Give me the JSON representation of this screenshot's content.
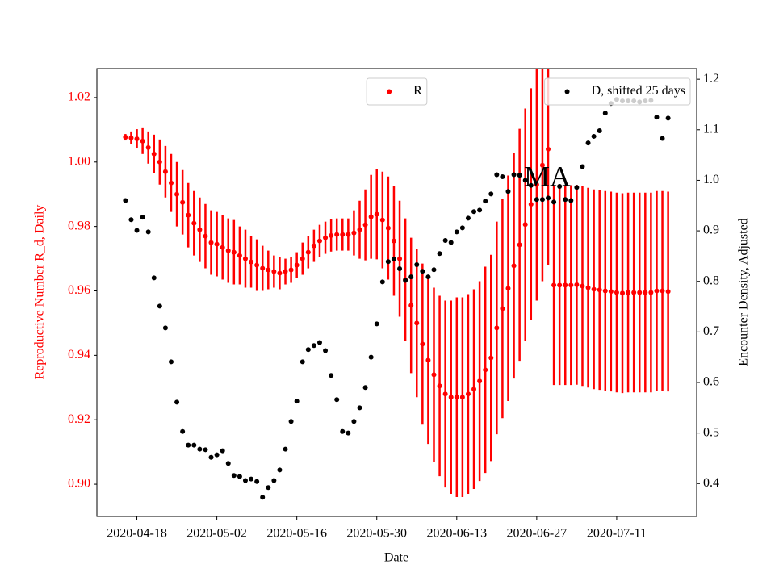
{
  "chart_data": {
    "type": "errorbar_dual",
    "xlabel": "Date",
    "ylabel": "Reproductive Number R_d, Daily",
    "y2label": "Encounter Density, Adjusted",
    "annotations": [
      {
        "text": "MA"
      }
    ],
    "x": [
      "2020-04-16",
      "2020-04-17",
      "2020-04-18",
      "2020-04-19",
      "2020-04-20",
      "2020-04-21",
      "2020-04-22",
      "2020-04-23",
      "2020-04-24",
      "2020-04-25",
      "2020-04-26",
      "2020-04-27",
      "2020-04-28",
      "2020-04-29",
      "2020-04-30",
      "2020-05-01",
      "2020-05-02",
      "2020-05-03",
      "2020-05-04",
      "2020-05-05",
      "2020-05-06",
      "2020-05-07",
      "2020-05-08",
      "2020-05-09",
      "2020-05-10",
      "2020-05-11",
      "2020-05-12",
      "2020-05-13",
      "2020-05-14",
      "2020-05-15",
      "2020-05-16",
      "2020-05-17",
      "2020-05-18",
      "2020-05-19",
      "2020-05-20",
      "2020-05-21",
      "2020-05-22",
      "2020-05-23",
      "2020-05-24",
      "2020-05-25",
      "2020-05-26",
      "2020-05-27",
      "2020-05-28",
      "2020-05-29",
      "2020-05-30",
      "2020-05-31",
      "2020-06-01",
      "2020-06-02",
      "2020-06-03",
      "2020-06-04",
      "2020-06-05",
      "2020-06-06",
      "2020-06-07",
      "2020-06-08",
      "2020-06-09",
      "2020-06-10",
      "2020-06-11",
      "2020-06-12",
      "2020-06-13",
      "2020-06-14",
      "2020-06-15",
      "2020-06-16",
      "2020-06-17",
      "2020-06-18",
      "2020-06-19",
      "2020-06-20",
      "2020-06-21",
      "2020-06-22",
      "2020-06-23",
      "2020-06-24",
      "2020-06-25",
      "2020-06-26",
      "2020-06-27",
      "2020-06-28",
      "2020-06-29",
      "2020-06-30",
      "2020-07-01",
      "2020-07-02",
      "2020-07-03",
      "2020-07-04",
      "2020-07-05",
      "2020-07-06",
      "2020-07-07",
      "2020-07-08",
      "2020-07-09",
      "2020-07-10",
      "2020-07-11",
      "2020-07-12",
      "2020-07-13",
      "2020-07-14",
      "2020-07-15",
      "2020-07-16",
      "2020-07-17",
      "2020-07-18",
      "2020-07-19",
      "2020-07-20"
    ],
    "xlim": [
      "2020-04-11",
      "2020-07-25"
    ],
    "xticks": [
      "2020-04-18",
      "2020-05-02",
      "2020-05-16",
      "2020-05-30",
      "2020-06-13",
      "2020-06-27",
      "2020-07-11"
    ],
    "ylim": [
      0.89,
      1.029
    ],
    "yticks": [
      {
        "value": 0.9,
        "label": "0.90"
      },
      0.92,
      0.94,
      0.96,
      0.98,
      {
        "value": 1,
        "label": "1.00"
      },
      1.02
    ],
    "y2lim": [
      0.335,
      1.221
    ],
    "y2ticks": [
      0.4,
      0.5,
      0.6,
      0.7,
      0.8,
      0.9,
      {
        "value": 1,
        "label": "1.0"
      },
      1.1,
      1.2
    ],
    "ylabel_color": "#ff0000",
    "series": [
      {
        "name": "R",
        "color": "#ff0000",
        "axis": "y",
        "legend_loc": "upper center",
        "values": [
          1.0077,
          1.0075,
          1.0072,
          1.0065,
          1.0045,
          1.0025,
          1.0,
          0.997,
          0.9935,
          0.99,
          0.9875,
          0.9835,
          0.981,
          0.979,
          0.977,
          0.975,
          0.9745,
          0.9735,
          0.9725,
          0.972,
          0.971,
          0.97,
          0.969,
          0.968,
          0.967,
          0.9665,
          0.966,
          0.9655,
          0.966,
          0.9665,
          0.968,
          0.97,
          0.972,
          0.974,
          0.9755,
          0.9765,
          0.9772,
          0.9775,
          0.9775,
          0.9775,
          0.978,
          0.979,
          0.9805,
          0.983,
          0.9838,
          0.982,
          0.9795,
          0.9755,
          0.97,
          0.9635,
          0.9555,
          0.95,
          0.9435,
          0.9385,
          0.934,
          0.9305,
          0.928,
          0.927,
          0.927,
          0.927,
          0.928,
          0.9295,
          0.932,
          0.9355,
          0.9392,
          0.9485,
          0.9545,
          0.9608,
          0.9678,
          0.9743,
          0.9806,
          0.9869,
          0.993,
          0.999,
          1.004,
          0.9618,
          0.9618,
          0.9618,
          0.9618,
          0.9619,
          0.9615,
          0.961,
          0.9605,
          0.9603,
          0.96,
          0.9598,
          0.9595,
          0.9593,
          0.9595,
          0.9595,
          0.9595,
          0.9595,
          0.9595,
          0.96,
          0.96,
          0.9598
        ],
        "errors": [
          0.001,
          0.002,
          0.003,
          0.004,
          0.005,
          0.006,
          0.007,
          0.008,
          0.009,
          0.01,
          0.01,
          0.01,
          0.01,
          0.01,
          0.01,
          0.01,
          0.01,
          0.01,
          0.01,
          0.01,
          0.009,
          0.009,
          0.008,
          0.008,
          0.007,
          0.006,
          0.005,
          0.005,
          0.004,
          0.004,
          0.004,
          0.005,
          0.005,
          0.005,
          0.005,
          0.005,
          0.005,
          0.005,
          0.005,
          0.005,
          0.007,
          0.009,
          0.011,
          0.013,
          0.014,
          0.015,
          0.016,
          0.017,
          0.018,
          0.019,
          0.021,
          0.023,
          0.025,
          0.026,
          0.027,
          0.028,
          0.029,
          0.03,
          0.031,
          0.031,
          0.031,
          0.031,
          0.031,
          0.032,
          0.032,
          0.033,
          0.034,
          0.035,
          0.035,
          0.036,
          0.036,
          0.036,
          0.036,
          0.036,
          0.036,
          0.031,
          0.031,
          0.031,
          0.031,
          0.031,
          0.031,
          0.031,
          0.031,
          0.031,
          0.031,
          0.031,
          0.031,
          0.031,
          0.031,
          0.031,
          0.031,
          0.031,
          0.031,
          0.031,
          0.031,
          0.031
        ]
      },
      {
        "name": "D, shifted 25 days",
        "color": "#000000",
        "axis": "y2",
        "legend_loc": "upper right",
        "values": [
          0.96,
          0.922,
          0.901,
          0.927,
          0.898,
          0.807,
          0.751,
          0.708,
          0.641,
          0.561,
          0.503,
          0.476,
          0.476,
          0.468,
          0.467,
          0.452,
          0.457,
          0.465,
          0.44,
          0.416,
          0.414,
          0.406,
          0.409,
          0.404,
          0.373,
          0.392,
          0.406,
          0.427,
          0.468,
          0.523,
          0.563,
          0.641,
          0.665,
          0.673,
          0.679,
          0.663,
          0.614,
          0.566,
          0.503,
          0.5,
          0.523,
          0.55,
          0.59,
          0.65,
          0.716,
          0.799,
          0.839,
          0.844,
          0.825,
          0.802,
          0.809,
          0.833,
          0.82,
          0.809,
          0.823,
          0.855,
          0.881,
          0.877,
          0.898,
          0.906,
          0.925,
          0.938,
          0.941,
          0.959,
          0.973,
          1.011,
          1.007,
          0.978,
          1.011,
          1.01,
          1.0,
          0.99,
          0.962,
          0.962,
          0.965,
          0.957,
          0.988,
          0.962,
          0.96,
          0.986,
          1.027,
          1.074,
          1.087,
          1.098,
          1.133,
          1.152,
          1.16,
          1.157,
          1.157,
          1.157,
          1.155,
          1.157,
          1.158,
          1.125,
          1.083,
          1.123
        ]
      }
    ]
  }
}
